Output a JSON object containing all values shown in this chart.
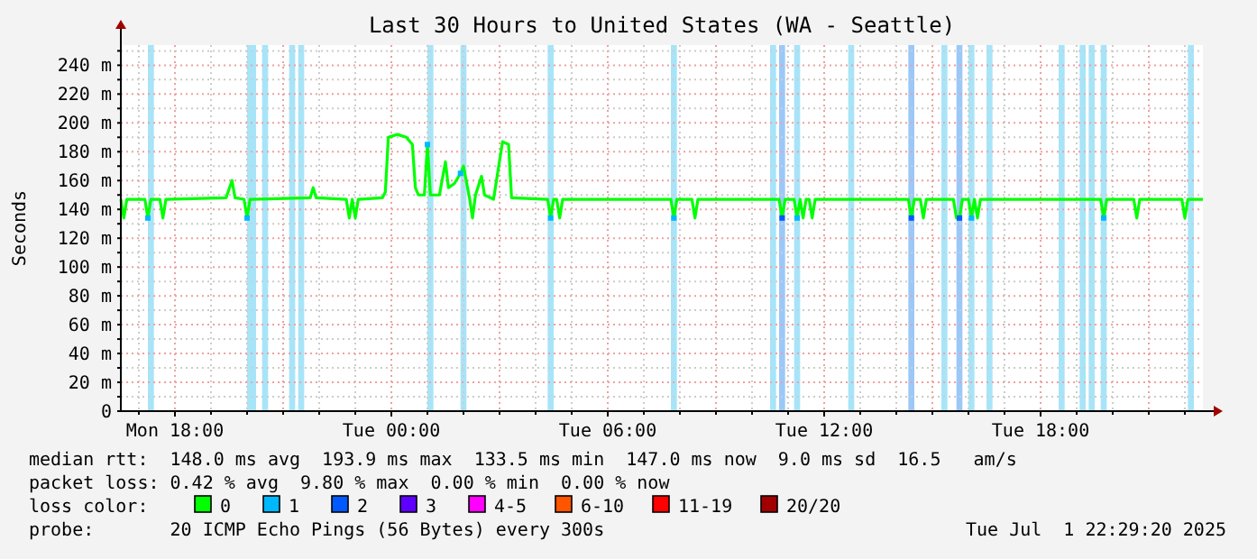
{
  "chart_data": {
    "type": "line",
    "title": "Last 30 Hours to United States (WA - Seattle)",
    "ylabel": "Seconds",
    "xlim": [
      "2025-06-30T16:30",
      "2025-07-01T22:30"
    ],
    "xticks": [
      {
        "value": "2025-06-30T17:00",
        "label": null
      },
      {
        "value": "2025-06-30T18:00",
        "label": "Mon 18:00"
      },
      {
        "value": "2025-06-30T19:00",
        "label": null
      },
      {
        "value": "2025-06-30T20:00",
        "label": null
      },
      {
        "value": "2025-06-30T21:00",
        "label": null
      },
      {
        "value": "2025-06-30T22:00",
        "label": null
      },
      {
        "value": "2025-06-30T23:00",
        "label": null
      },
      {
        "value": "2025-07-01T00:00",
        "label": "Tue 00:00"
      },
      {
        "value": "2025-07-01T01:00",
        "label": null
      },
      {
        "value": "2025-07-01T02:00",
        "label": null
      },
      {
        "value": "2025-07-01T03:00",
        "label": null
      },
      {
        "value": "2025-07-01T04:00",
        "label": null
      },
      {
        "value": "2025-07-01T05:00",
        "label": null
      },
      {
        "value": "2025-07-01T06:00",
        "label": "Tue 06:00"
      },
      {
        "value": "2025-07-01T07:00",
        "label": null
      },
      {
        "value": "2025-07-01T08:00",
        "label": null
      },
      {
        "value": "2025-07-01T09:00",
        "label": null
      },
      {
        "value": "2025-07-01T10:00",
        "label": null
      },
      {
        "value": "2025-07-01T11:00",
        "label": null
      },
      {
        "value": "2025-07-01T12:00",
        "label": "Tue 12:00"
      },
      {
        "value": "2025-07-01T13:00",
        "label": null
      },
      {
        "value": "2025-07-01T14:00",
        "label": null
      },
      {
        "value": "2025-07-01T15:00",
        "label": null
      },
      {
        "value": "2025-07-01T16:00",
        "label": null
      },
      {
        "value": "2025-07-01T17:00",
        "label": null
      },
      {
        "value": "2025-07-01T18:00",
        "label": "Tue 18:00"
      },
      {
        "value": "2025-07-01T19:00",
        "label": null
      },
      {
        "value": "2025-07-01T20:00",
        "label": null
      },
      {
        "value": "2025-07-01T21:00",
        "label": null
      },
      {
        "value": "2025-07-01T22:00",
        "label": null
      }
    ],
    "ylim": [
      0,
      254
    ],
    "yticks": [
      {
        "value": 0,
        "label": "0"
      },
      {
        "value": 10,
        "label": null
      },
      {
        "value": 20,
        "label": "20 m"
      },
      {
        "value": 30,
        "label": null
      },
      {
        "value": 40,
        "label": "40 m"
      },
      {
        "value": 50,
        "label": null
      },
      {
        "value": 60,
        "label": "60 m"
      },
      {
        "value": 70,
        "label": null
      },
      {
        "value": 80,
        "label": "80 m"
      },
      {
        "value": 90,
        "label": null
      },
      {
        "value": 100,
        "label": "100 m"
      },
      {
        "value": 110,
        "label": null
      },
      {
        "value": 120,
        "label": "120 m"
      },
      {
        "value": 130,
        "label": null
      },
      {
        "value": 140,
        "label": "140 m"
      },
      {
        "value": 150,
        "label": null
      },
      {
        "value": 160,
        "label": "160 m"
      },
      {
        "value": 170,
        "label": null
      },
      {
        "value": 180,
        "label": "180 m"
      },
      {
        "value": 190,
        "label": null
      },
      {
        "value": 200,
        "label": "200 m"
      },
      {
        "value": 210,
        "label": null
      },
      {
        "value": 220,
        "label": "220 m"
      },
      {
        "value": 230,
        "label": null
      },
      {
        "value": 240,
        "label": "240 m"
      },
      {
        "value": 250,
        "label": null
      }
    ],
    "grid": true,
    "legend": "bottom",
    "legend_title": "loss color:",
    "series": [
      {
        "name": "0",
        "color": "#00ff00",
        "x": [
          "2025-06-30T16:30",
          "2025-06-30T16:35",
          "2025-06-30T16:40",
          "2025-06-30T17:10",
          "2025-06-30T17:15",
          "2025-06-30T17:20",
          "2025-06-30T17:35",
          "2025-06-30T17:40",
          "2025-06-30T17:45",
          "2025-06-30T19:25",
          "2025-06-30T19:35",
          "2025-06-30T19:40",
          "2025-06-30T19:55",
          "2025-06-30T20:00",
          "2025-06-30T20:05",
          "2025-06-30T21:45",
          "2025-06-30T21:50",
          "2025-06-30T21:55",
          "2025-06-30T22:45",
          "2025-06-30T22:50",
          "2025-06-30T22:55",
          "2025-06-30T23:00",
          "2025-06-30T23:05",
          "2025-06-30T23:45",
          "2025-06-30T23:50",
          "2025-06-30T23:55",
          "2025-07-01T00:10",
          "2025-07-01T00:25",
          "2025-07-01T00:35",
          "2025-07-01T00:40",
          "2025-07-01T00:45",
          "2025-07-01T00:55",
          "2025-07-01T01:00",
          "2025-07-01T01:05",
          "2025-07-01T01:20",
          "2025-07-01T01:30",
          "2025-07-01T01:35",
          "2025-07-01T01:45",
          "2025-07-01T01:55",
          "2025-07-01T02:00",
          "2025-07-01T02:10",
          "2025-07-01T02:15",
          "2025-07-01T02:20",
          "2025-07-01T02:30",
          "2025-07-01T02:35",
          "2025-07-01T02:50",
          "2025-07-01T03:05",
          "2025-07-01T03:15",
          "2025-07-01T03:20",
          "2025-07-01T04:20",
          "2025-07-01T04:25",
          "2025-07-01T04:30",
          "2025-07-01T04:35",
          "2025-07-01T04:40",
          "2025-07-01T04:45",
          "2025-07-01T07:45",
          "2025-07-01T07:50",
          "2025-07-01T07:55",
          "2025-07-01T08:20",
          "2025-07-01T08:25",
          "2025-07-01T08:30",
          "2025-07-01T10:45",
          "2025-07-01T10:50",
          "2025-07-01T10:55",
          "2025-07-01T11:10",
          "2025-07-01T11:15",
          "2025-07-01T11:20",
          "2025-07-01T11:25",
          "2025-07-01T11:30",
          "2025-07-01T11:35",
          "2025-07-01T11:40",
          "2025-07-01T11:45",
          "2025-07-01T14:20",
          "2025-07-01T14:25",
          "2025-07-01T14:30",
          "2025-07-01T14:40",
          "2025-07-01T14:45",
          "2025-07-01T14:50",
          "2025-07-01T15:35",
          "2025-07-01T15:40",
          "2025-07-01T15:45",
          "2025-07-01T15:50",
          "2025-07-01T16:00",
          "2025-07-01T16:05",
          "2025-07-01T16:10",
          "2025-07-01T16:15",
          "2025-07-01T16:20",
          "2025-07-01T19:40",
          "2025-07-01T19:45",
          "2025-07-01T19:50",
          "2025-07-01T20:35",
          "2025-07-01T20:40",
          "2025-07-01T20:45",
          "2025-07-01T21:55",
          "2025-07-01T22:00",
          "2025-07-01T22:05",
          "2025-07-01T22:30"
        ],
        "values": [
          147,
          134,
          147,
          147,
          134,
          147,
          147,
          134,
          147,
          148,
          160,
          148,
          147,
          134,
          147,
          148,
          155,
          148,
          147,
          134,
          147,
          134,
          147,
          148,
          152,
          190,
          192,
          190,
          185,
          155,
          150,
          150,
          185,
          150,
          150,
          173,
          155,
          158,
          165,
          170,
          148,
          134,
          150,
          163,
          150,
          147,
          187,
          185,
          148,
          147,
          134,
          147,
          147,
          134,
          147,
          147,
          134,
          147,
          147,
          134,
          147,
          147,
          134,
          147,
          147,
          134,
          147,
          134,
          147,
          147,
          134,
          147,
          147,
          134,
          147,
          147,
          134,
          147,
          147,
          134,
          134,
          147,
          147,
          134,
          147,
          134,
          147,
          147,
          134,
          147,
          147,
          134,
          147,
          147,
          134,
          147,
          147
        ]
      },
      {
        "name": "1",
        "type": "scatter",
        "marker": "square",
        "color": "#00b8ff",
        "x": [
          "2025-06-30T17:15",
          "2025-06-30T20:00",
          "2025-07-01T01:00",
          "2025-07-01T01:55",
          "2025-07-01T04:25",
          "2025-07-01T07:50",
          "2025-07-01T11:15",
          "2025-07-01T16:05",
          "2025-07-01T19:45"
        ],
        "values": [
          134,
          134,
          185,
          165,
          134,
          134,
          134,
          134,
          134
        ]
      },
      {
        "name": "2",
        "type": "scatter",
        "marker": "square",
        "color": "#0059ff",
        "x": [
          "2025-07-01T10:50",
          "2025-07-01T14:25",
          "2025-07-01T15:45"
        ],
        "values": [
          134,
          134,
          134
        ]
      },
      {
        "name": "3",
        "type": "scatter",
        "color": "#5e00ff"
      },
      {
        "name": "4-5",
        "type": "scatter",
        "color": "#ff00ff"
      },
      {
        "name": "6-10",
        "type": "scatter",
        "color": "#ff5500"
      },
      {
        "name": "11-19",
        "type": "scatter",
        "color": "#ff0000"
      },
      {
        "name": "20/20",
        "type": "scatter",
        "color": "#a10000"
      }
    ],
    "bands": [
      {
        "axis": "x",
        "from": "2025-06-30T17:15",
        "to": "2025-06-30T17:25",
        "color": "#a8e4f8"
      },
      {
        "axis": "x",
        "from": "2025-06-30T20:00",
        "to": "2025-06-30T20:15",
        "color": "#a8e4f8"
      },
      {
        "axis": "x",
        "from": "2025-06-30T20:25",
        "to": "2025-06-30T20:35",
        "color": "#a8e4f8"
      },
      {
        "axis": "x",
        "from": "2025-06-30T21:10",
        "to": "2025-06-30T21:20",
        "color": "#a8e4f8"
      },
      {
        "axis": "x",
        "from": "2025-06-30T21:25",
        "to": "2025-06-30T21:35",
        "color": "#a8e4f8"
      },
      {
        "axis": "x",
        "from": "2025-07-01T01:00",
        "to": "2025-07-01T01:10",
        "color": "#a8e4f8"
      },
      {
        "axis": "x",
        "from": "2025-07-01T01:55",
        "to": "2025-07-01T02:05",
        "color": "#a8e4f8"
      },
      {
        "axis": "x",
        "from": "2025-07-01T04:20",
        "to": "2025-07-01T04:30",
        "color": "#a8e4f8"
      },
      {
        "axis": "x",
        "from": "2025-07-01T07:45",
        "to": "2025-07-01T07:55",
        "color": "#a8e4f8"
      },
      {
        "axis": "x",
        "from": "2025-07-01T10:30",
        "to": "2025-07-01T10:40",
        "color": "#a8e4f8"
      },
      {
        "axis": "x",
        "from": "2025-07-01T10:45",
        "to": "2025-07-01T10:55",
        "color": "#9cc8f8"
      },
      {
        "axis": "x",
        "from": "2025-07-01T11:10",
        "to": "2025-07-01T11:20",
        "color": "#a8e4f8"
      },
      {
        "axis": "x",
        "from": "2025-07-01T12:40",
        "to": "2025-07-01T12:50",
        "color": "#a8e4f8"
      },
      {
        "axis": "x",
        "from": "2025-07-01T14:20",
        "to": "2025-07-01T14:30",
        "color": "#9cc8f8"
      },
      {
        "axis": "x",
        "from": "2025-07-01T15:15",
        "to": "2025-07-01T15:25",
        "color": "#a8e4f8"
      },
      {
        "axis": "x",
        "from": "2025-07-01T15:40",
        "to": "2025-07-01T15:50",
        "color": "#9cc8f8"
      },
      {
        "axis": "x",
        "from": "2025-07-01T16:00",
        "to": "2025-07-01T16:10",
        "color": "#a8e4f8"
      },
      {
        "axis": "x",
        "from": "2025-07-01T16:30",
        "to": "2025-07-01T16:40",
        "color": "#a8e4f8"
      },
      {
        "axis": "x",
        "from": "2025-07-01T18:30",
        "to": "2025-07-01T18:40",
        "color": "#a8e4f8"
      },
      {
        "axis": "x",
        "from": "2025-07-01T19:05",
        "to": "2025-07-01T19:15",
        "color": "#a8e4f8"
      },
      {
        "axis": "x",
        "from": "2025-07-01T19:20",
        "to": "2025-07-01T19:30",
        "color": "#a8e4f8"
      },
      {
        "axis": "x",
        "from": "2025-07-01T19:40",
        "to": "2025-07-01T19:50",
        "color": "#a8e4f8"
      },
      {
        "axis": "x",
        "from": "2025-07-01T22:05",
        "to": "2025-07-01T22:15",
        "color": "#a8e4f8"
      }
    ],
    "annotations": [
      "median rtt:  148.0 ms avg  193.9 ms max  133.5 ms min  147.0 ms now  9.0 ms sd  16.5   am/s",
      "packet loss: 0.42 % avg  9.80 % max  0.00 % min  0.00 % now",
      "probe:       20 ICMP Echo Pings (56 Bytes) every 300s",
      "Tue Jul  1 22:29:20 2025"
    ]
  }
}
